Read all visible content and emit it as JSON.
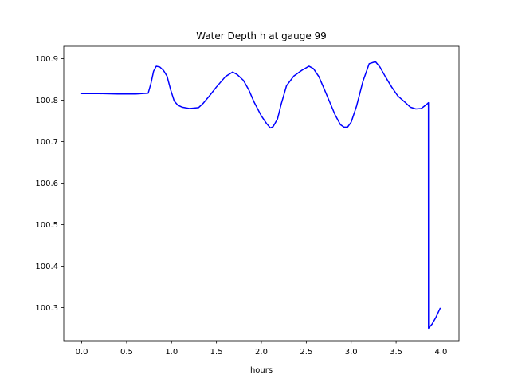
{
  "chart_data": {
    "type": "line",
    "title": "Water Depth h at gauge 99",
    "xlabel": "hours",
    "ylabel": "",
    "xlim": [
      -0.2,
      4.2
    ],
    "ylim": [
      100.22,
      100.93
    ],
    "grid": false,
    "x_ticks": [
      0.0,
      0.5,
      1.0,
      1.5,
      2.0,
      2.5,
      3.0,
      3.5,
      4.0
    ],
    "x_tick_labels": [
      "0.0",
      "0.5",
      "1.0",
      "1.5",
      "2.0",
      "2.5",
      "3.0",
      "3.5",
      "4.0"
    ],
    "y_ticks": [
      100.3,
      100.4,
      100.5,
      100.6,
      100.7,
      100.8,
      100.9
    ],
    "y_tick_labels": [
      "100.3",
      "100.4",
      "100.5",
      "100.6",
      "100.7",
      "100.8",
      "100.9"
    ],
    "series": [
      {
        "color": "#0000ff",
        "x": [
          0.0,
          0.2,
          0.4,
          0.6,
          0.74,
          0.77,
          0.8,
          0.83,
          0.87,
          0.91,
          0.95,
          0.99,
          1.03,
          1.07,
          1.12,
          1.2,
          1.3,
          1.35,
          1.42,
          1.5,
          1.6,
          1.68,
          1.73,
          1.8,
          1.86,
          1.92,
          2.0,
          2.06,
          2.1,
          2.13,
          2.18,
          2.22,
          2.28,
          2.36,
          2.45,
          2.53,
          2.58,
          2.64,
          2.7,
          2.76,
          2.82,
          2.88,
          2.92,
          2.96,
          3.0,
          3.06,
          3.13,
          3.2,
          3.27,
          3.32,
          3.38,
          3.45,
          3.52,
          3.6,
          3.66,
          3.72,
          3.78,
          3.81,
          3.84,
          3.86,
          3.861,
          3.9,
          3.94,
          3.99
        ],
        "y": [
          100.816,
          100.816,
          100.815,
          100.815,
          100.817,
          100.84,
          100.87,
          100.882,
          100.88,
          100.872,
          100.858,
          100.825,
          100.798,
          100.788,
          100.783,
          100.78,
          100.782,
          100.792,
          100.81,
          100.832,
          100.857,
          100.868,
          100.862,
          100.848,
          100.825,
          100.795,
          100.762,
          100.743,
          100.733,
          100.736,
          100.755,
          100.79,
          100.835,
          100.858,
          100.872,
          100.882,
          100.876,
          100.857,
          100.827,
          100.796,
          100.765,
          100.741,
          100.735,
          100.735,
          100.747,
          100.786,
          100.845,
          100.888,
          100.893,
          100.88,
          100.857,
          100.832,
          100.81,
          100.795,
          100.783,
          100.779,
          100.78,
          100.785,
          100.79,
          100.794,
          100.25,
          100.26,
          100.275,
          100.298
        ]
      }
    ]
  }
}
